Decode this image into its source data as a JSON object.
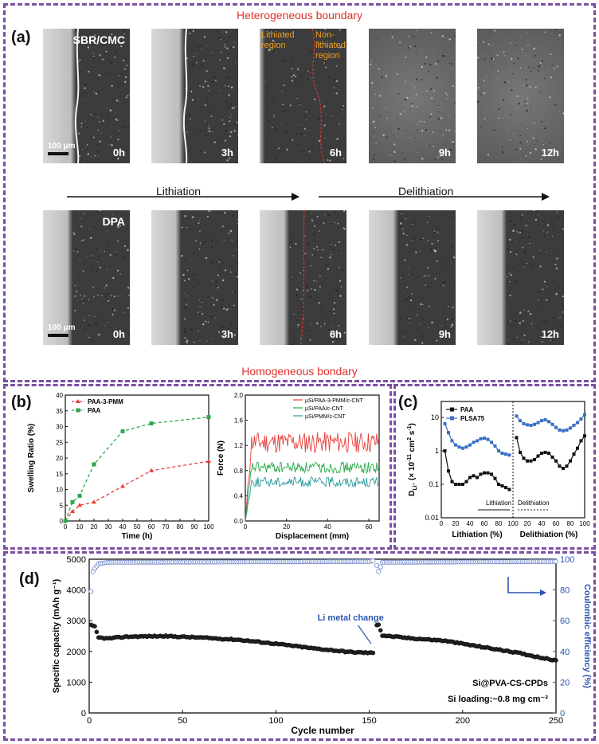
{
  "panel_a": {
    "label": "(a)",
    "top_caption": "Heterogeneous boundary",
    "bottom_caption": "Homogeneous bondary",
    "row1_name": "SBR/CMC",
    "row2_name": "DPA",
    "scale_text": "100 μm",
    "lithiated_label": "Lithiated region",
    "nonlithiated_label": "Non-lithiated region",
    "times": [
      "0h",
      "3h",
      "6h",
      "9h",
      "12h"
    ],
    "lithiation_label": "Lithiation",
    "delithiation_label": "Delithiation"
  },
  "panel_b": {
    "label": "(b)",
    "colors": {
      "pmm": "#e8403a",
      "paa": "#2aa84a",
      "teal": "#2a9a9a"
    }
  },
  "panel_c": {
    "label": "(c)",
    "colors": {
      "paa": "#111111",
      "plsa": "#3a6fc4"
    }
  },
  "panel_d": {
    "label": "(d)",
    "annotation_change": "Li metal change",
    "annotation_sample": "Si@PVA-CS-CPDs",
    "annotation_loading": "Si loading:~0.8 mg cm⁻²",
    "colors": {
      "capacity": "#222222",
      "ce": "#6f86c8",
      "axis_right": "#2a55b0"
    }
  },
  "chart_data": [
    {
      "id": "b1",
      "type": "line",
      "xlabel": "Time (h)",
      "ylabel": "Swelling Ratio (%)",
      "xlim": [
        0,
        100
      ],
      "ylim": [
        0,
        40
      ],
      "xticks": [
        0,
        10,
        20,
        30,
        40,
        50,
        60,
        70,
        80,
        90,
        100
      ],
      "yticks": [
        0,
        5,
        10,
        15,
        20,
        25,
        30,
        35,
        40
      ],
      "legend_position": "top-left",
      "series": [
        {
          "name": "PAA-3-PMM",
          "x": [
            0,
            5,
            10,
            20,
            40,
            60,
            100
          ],
          "y": [
            0,
            3,
            5,
            6,
            11,
            16,
            19
          ]
        },
        {
          "name": "PAA",
          "x": [
            0,
            5,
            10,
            20,
            40,
            60,
            100
          ],
          "y": [
            0,
            6,
            8,
            18,
            28.5,
            31,
            33
          ]
        }
      ]
    },
    {
      "id": "b2",
      "type": "line",
      "xlabel": "Displacement (mm)",
      "ylabel": "Force (N)",
      "xlim": [
        0,
        65
      ],
      "ylim": [
        0,
        2.0
      ],
      "xticks": [
        0,
        20,
        40,
        60
      ],
      "yticks": [
        0.0,
        0.4,
        0.8,
        1.2,
        1.6,
        2.0
      ],
      "legend_position": "top-right",
      "series": [
        {
          "name": "μSi/PAA-3-PMM/c-CNT",
          "mean": 1.25,
          "amp": 0.17
        },
        {
          "name": "μSi/PAA/c-CNT",
          "mean": 0.85,
          "amp": 0.09
        },
        {
          "name": "μSi/PMM/c-CNT",
          "mean": 0.62,
          "amp": 0.08
        }
      ]
    },
    {
      "id": "c",
      "type": "line",
      "ylabel_main": "D",
      "ylabel_sub": "Li⁺",
      "ylabel_rest": " (× 10",
      "ylabel_exp": "-11",
      "ylabel_rest2": " cm",
      "ylabel_exp2": "2",
      "ylabel_rest3": " s",
      "ylabel_exp3": "-1",
      "ylabel_end": ")",
      "xlabel_left": "Lithiation (%)",
      "xlabel_right": "Delithiation (%)",
      "arrow_lithiation": "Lithiation",
      "arrow_delithiation": "Delithiation",
      "yscale": "log",
      "ylim": [
        0.01,
        30
      ],
      "yticks": [
        0.01,
        0.1,
        1,
        10
      ],
      "ytick_labels": [
        "0.01",
        "0.1",
        "1",
        "10"
      ],
      "xticks_left": [
        0,
        20,
        40,
        60,
        80,
        100
      ],
      "xticks_right": [
        20,
        40,
        60,
        80,
        100
      ],
      "legend_position": "top-left",
      "series": [
        {
          "name": "PAA",
          "lith": [
            [
              5,
              1.0
            ],
            [
              10,
              0.25
            ],
            [
              15,
              0.12
            ],
            [
              20,
              0.1
            ],
            [
              25,
              0.1
            ],
            [
              30,
              0.1
            ],
            [
              35,
              0.12
            ],
            [
              40,
              0.16
            ],
            [
              45,
              0.18
            ],
            [
              50,
              0.16
            ],
            [
              55,
              0.2
            ],
            [
              60,
              0.22
            ],
            [
              65,
              0.22
            ],
            [
              70,
              0.2
            ],
            [
              75,
              0.15
            ],
            [
              80,
              0.1
            ],
            [
              85,
              0.09
            ],
            [
              90,
              0.08
            ],
            [
              95,
              0.07
            ]
          ],
          "delith": [
            [
              5,
              2.5
            ],
            [
              10,
              0.9
            ],
            [
              15,
              0.6
            ],
            [
              20,
              0.5
            ],
            [
              25,
              0.5
            ],
            [
              30,
              0.55
            ],
            [
              35,
              0.7
            ],
            [
              40,
              0.85
            ],
            [
              45,
              0.9
            ],
            [
              50,
              0.85
            ],
            [
              55,
              0.65
            ],
            [
              60,
              0.5
            ],
            [
              65,
              0.35
            ],
            [
              70,
              0.3
            ],
            [
              75,
              0.35
            ],
            [
              80,
              0.5
            ],
            [
              85,
              0.8
            ],
            [
              90,
              1.2
            ],
            [
              95,
              2.0
            ],
            [
              100,
              2.8
            ]
          ]
        },
        {
          "name": "PLSA75",
          "lith": [
            [
              5,
              6.5
            ],
            [
              10,
              3.5
            ],
            [
              15,
              2.0
            ],
            [
              20,
              1.5
            ],
            [
              25,
              1.3
            ],
            [
              30,
              1.2
            ],
            [
              35,
              1.3
            ],
            [
              40,
              1.5
            ],
            [
              45,
              1.8
            ],
            [
              50,
              2.0
            ],
            [
              55,
              2.3
            ],
            [
              60,
              2.4
            ],
            [
              65,
              2.2
            ],
            [
              70,
              1.8
            ],
            [
              75,
              1.4
            ],
            [
              80,
              1.0
            ],
            [
              85,
              0.85
            ],
            [
              90,
              0.8
            ],
            [
              95,
              0.75
            ]
          ],
          "delith": [
            [
              5,
              11
            ],
            [
              10,
              8
            ],
            [
              15,
              6.5
            ],
            [
              20,
              6
            ],
            [
              25,
              5.8
            ],
            [
              30,
              6.2
            ],
            [
              35,
              7
            ],
            [
              40,
              8
            ],
            [
              45,
              8.5
            ],
            [
              50,
              7.5
            ],
            [
              55,
              6.2
            ],
            [
              60,
              5
            ],
            [
              65,
              4.2
            ],
            [
              70,
              4
            ],
            [
              75,
              4.2
            ],
            [
              80,
              4.8
            ],
            [
              85,
              5.8
            ],
            [
              90,
              7
            ],
            [
              95,
              9
            ],
            [
              100,
              12
            ]
          ]
        }
      ]
    },
    {
      "id": "d",
      "type": "scatter",
      "xlabel": "Cycle number",
      "ylabel_left": "Specific capacity (mAh g⁻¹)",
      "ylabel_right": "Coulombic efficiency (%)",
      "xlim": [
        0,
        250
      ],
      "ylim_left": [
        0,
        5000
      ],
      "ylim_right": [
        0,
        100
      ],
      "xticks": [
        0,
        50,
        100,
        150,
        200,
        250
      ],
      "yticks_left": [
        0,
        1000,
        2000,
        3000,
        4000,
        5000
      ],
      "yticks_right": [
        0,
        20,
        40,
        60,
        80,
        100
      ],
      "series": [
        {
          "name": "Specific capacity",
          "anchors": [
            [
              1,
              2850
            ],
            [
              3,
              2800
            ],
            [
              5,
              2450
            ],
            [
              10,
              2420
            ],
            [
              20,
              2480
            ],
            [
              40,
              2500
            ],
            [
              60,
              2450
            ],
            [
              80,
              2380
            ],
            [
              100,
              2250
            ],
            [
              120,
              2100
            ],
            [
              140,
              1980
            ],
            [
              152,
              1950
            ],
            [
              154,
              2870
            ],
            [
              155,
              2880
            ],
            [
              157,
              2520
            ],
            [
              170,
              2440
            ],
            [
              190,
              2350
            ],
            [
              210,
              2150
            ],
            [
              230,
              1950
            ],
            [
              250,
              1700
            ]
          ]
        },
        {
          "name": "Coulombic efficiency",
          "anchors": [
            [
              1,
              79
            ],
            [
              2,
              92
            ],
            [
              3,
              94
            ],
            [
              5,
              97
            ],
            [
              10,
              98
            ],
            [
              150,
              98.5
            ],
            [
              153,
              99.2
            ],
            [
              154,
              96
            ],
            [
              155,
              92
            ],
            [
              157,
              98
            ],
            [
              250,
              98.5
            ]
          ]
        }
      ]
    }
  ]
}
